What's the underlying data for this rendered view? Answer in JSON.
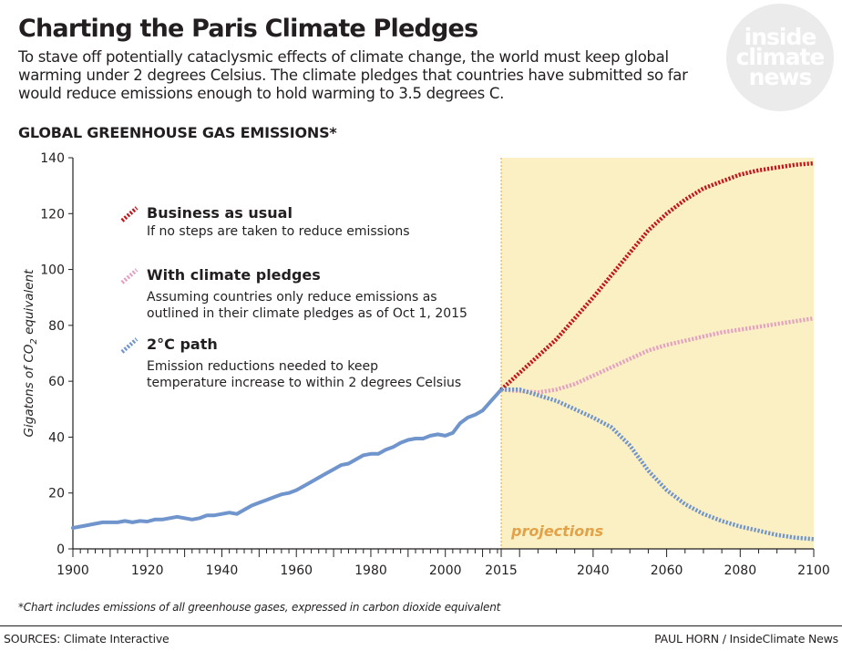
{
  "header": {
    "title": "Charting the Paris Climate Pledges",
    "subtitle": "To stave off potentially cataclysmic effects of climate change, the world must keep global warming under 2 degrees Celsius. The climate pledges that countries have submitted so far would reduce emissions enough to hold warming to 3.5 degrees C.",
    "section_title": "GLOBAL GREENHOUSE GAS EMISSIONS*"
  },
  "logo": {
    "lines": [
      "inside",
      "climate",
      "news"
    ]
  },
  "chart_data": {
    "type": "line",
    "xlabel": "",
    "ylabel_prefix": "Gigatons of CO",
    "ylabel_sub": "2",
    "ylabel_suffix": " equivalent",
    "xlim": [
      1900,
      2100
    ],
    "ylim": [
      0,
      140
    ],
    "y_ticks": [
      0,
      20,
      40,
      60,
      80,
      100,
      120,
      140
    ],
    "x_tick_labels": [
      1900,
      1920,
      1940,
      1960,
      1980,
      2000,
      2015,
      2040,
      2060,
      2080,
      2100
    ],
    "projection_start": 2015,
    "projection_label": "projections",
    "colors": {
      "historical": "#7095cc",
      "business_as_usual": "#c4141c",
      "climate_pledges": "#e3a2c3",
      "two_degree": "#7095cc",
      "projection_band": "#fbf0c3",
      "projection_line": "#e2a24a",
      "projection_label": "#e2a24a"
    },
    "historical": {
      "x": [
        1900,
        1902,
        1904,
        1906,
        1908,
        1910,
        1912,
        1914,
        1916,
        1918,
        1920,
        1922,
        1924,
        1926,
        1928,
        1930,
        1932,
        1934,
        1936,
        1938,
        1940,
        1942,
        1944,
        1946,
        1948,
        1950,
        1952,
        1954,
        1956,
        1958,
        1960,
        1962,
        1964,
        1966,
        1968,
        1970,
        1972,
        1974,
        1976,
        1978,
        1980,
        1982,
        1984,
        1986,
        1988,
        1990,
        1992,
        1994,
        1996,
        1998,
        2000,
        2002,
        2004,
        2006,
        2008,
        2010,
        2012,
        2014,
        2015
      ],
      "y": [
        7.5,
        8,
        8.5,
        9,
        9.5,
        9.5,
        9.5,
        10,
        9.5,
        10,
        9.8,
        10.5,
        10.5,
        11,
        11.5,
        11,
        10.5,
        11,
        12,
        12,
        12.5,
        13,
        12.5,
        14,
        15.5,
        16.5,
        17.5,
        18.5,
        19.5,
        20,
        21,
        22.5,
        24,
        25.5,
        27,
        28.5,
        30,
        30.5,
        32,
        33.5,
        34,
        34,
        35.5,
        36.5,
        38,
        39,
        39.5,
        39.5,
        40.5,
        41,
        40.5,
        41.5,
        45,
        47,
        48,
        49.5,
        52.5,
        55.5,
        57
      ]
    },
    "series": [
      {
        "key": "business_as_usual",
        "name": "Business as usual",
        "description": "If no steps are taken to reduce emissions",
        "x": [
          2015,
          2020,
          2025,
          2030,
          2035,
          2040,
          2045,
          2050,
          2055,
          2060,
          2065,
          2070,
          2075,
          2080,
          2085,
          2090,
          2095,
          2100
        ],
        "y": [
          57,
          63,
          69,
          75,
          82.5,
          90,
          98,
          106,
          114,
          120,
          125,
          129,
          131.5,
          134,
          135.5,
          136.5,
          137.5,
          138
        ]
      },
      {
        "key": "climate_pledges",
        "name": "With climate pledges",
        "description": "Assuming countries only reduce emissions as outlined in their climate pledges as of Oct 1, 2015",
        "x": [
          2015,
          2020,
          2025,
          2030,
          2035,
          2040,
          2045,
          2050,
          2055,
          2060,
          2065,
          2070,
          2075,
          2080,
          2085,
          2090,
          2095,
          2100
        ],
        "y": [
          57,
          56.5,
          56,
          57,
          59,
          62,
          65,
          68,
          71,
          73,
          74.5,
          76,
          77.5,
          78.5,
          79.5,
          80.5,
          81.5,
          82.5
        ]
      },
      {
        "key": "two_degree",
        "name": "2°C path",
        "description": "Emission reductions needed to keep temperature increase to within 2 degrees Celsius",
        "x": [
          2015,
          2020,
          2025,
          2030,
          2035,
          2040,
          2045,
          2050,
          2055,
          2060,
          2065,
          2070,
          2075,
          2080,
          2085,
          2090,
          2095,
          2100
        ],
        "y": [
          57,
          57,
          55,
          53,
          50,
          47,
          43.5,
          37,
          28,
          21,
          16,
          12.5,
          10,
          8,
          6.5,
          5,
          4,
          3.5
        ]
      }
    ]
  },
  "footnote": "*Chart includes emissions of all greenhouse gases, expressed in carbon dioxide equivalent",
  "footer": {
    "sources": "SOURCES: Climate Interactive",
    "credit": "PAUL HORN / InsideClimate News"
  }
}
